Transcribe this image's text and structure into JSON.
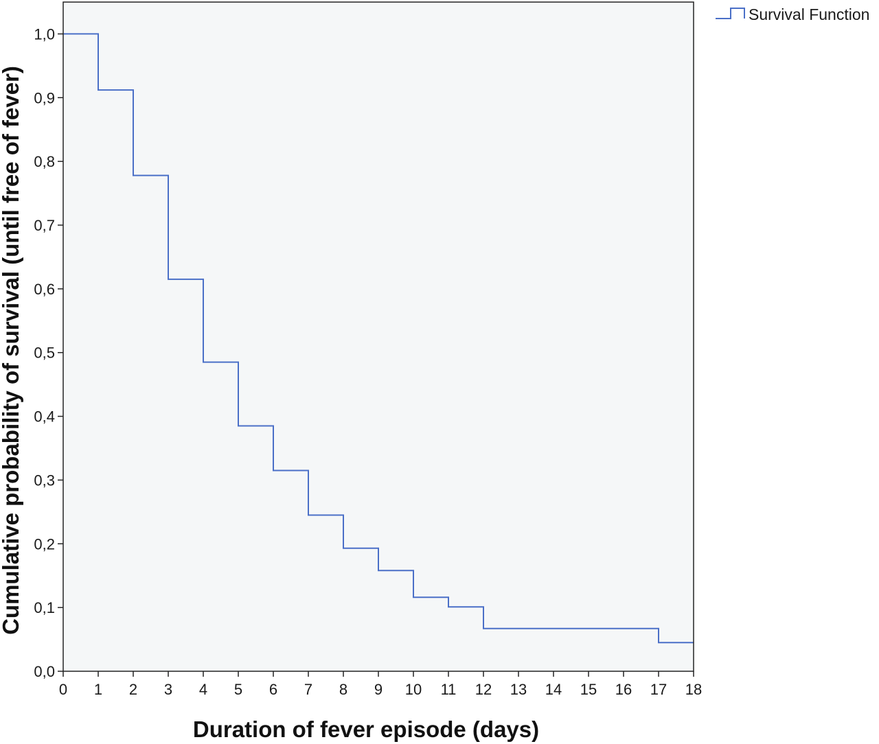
{
  "chart_data": {
    "type": "line",
    "step": true,
    "xlabel": "Duration of fever episode (days)",
    "ylabel": "Cumulative probability of survival (until free of fever)",
    "xlim": [
      0,
      18
    ],
    "ylim": [
      0.0,
      1.05
    ],
    "x_ticks": [
      "0",
      "1",
      "2",
      "3",
      "4",
      "5",
      "6",
      "7",
      "8",
      "9",
      "10",
      "11",
      "12",
      "13",
      "14",
      "15",
      "16",
      "17",
      "18"
    ],
    "y_ticks": [
      "0,0",
      "0,1",
      "0,2",
      "0,3",
      "0,4",
      "0,5",
      "0,6",
      "0,7",
      "0,8",
      "0,9",
      "1,0"
    ],
    "y_tick_values": [
      0.0,
      0.1,
      0.2,
      0.3,
      0.4,
      0.5,
      0.6,
      0.7,
      0.8,
      0.9,
      1.0
    ],
    "grid": false,
    "legend_position": "top-right-outside",
    "plot_background": "#f5f7f8",
    "series": [
      {
        "name": "Survival Function",
        "color": "#4a6fc7",
        "x": [
          0,
          1,
          2,
          3,
          4,
          5,
          6,
          7,
          8,
          9,
          10,
          11,
          12,
          17,
          18
        ],
        "y": [
          1.0,
          0.912,
          0.778,
          0.615,
          0.485,
          0.385,
          0.315,
          0.245,
          0.193,
          0.158,
          0.116,
          0.101,
          0.067,
          0.045,
          0.045
        ]
      }
    ]
  }
}
